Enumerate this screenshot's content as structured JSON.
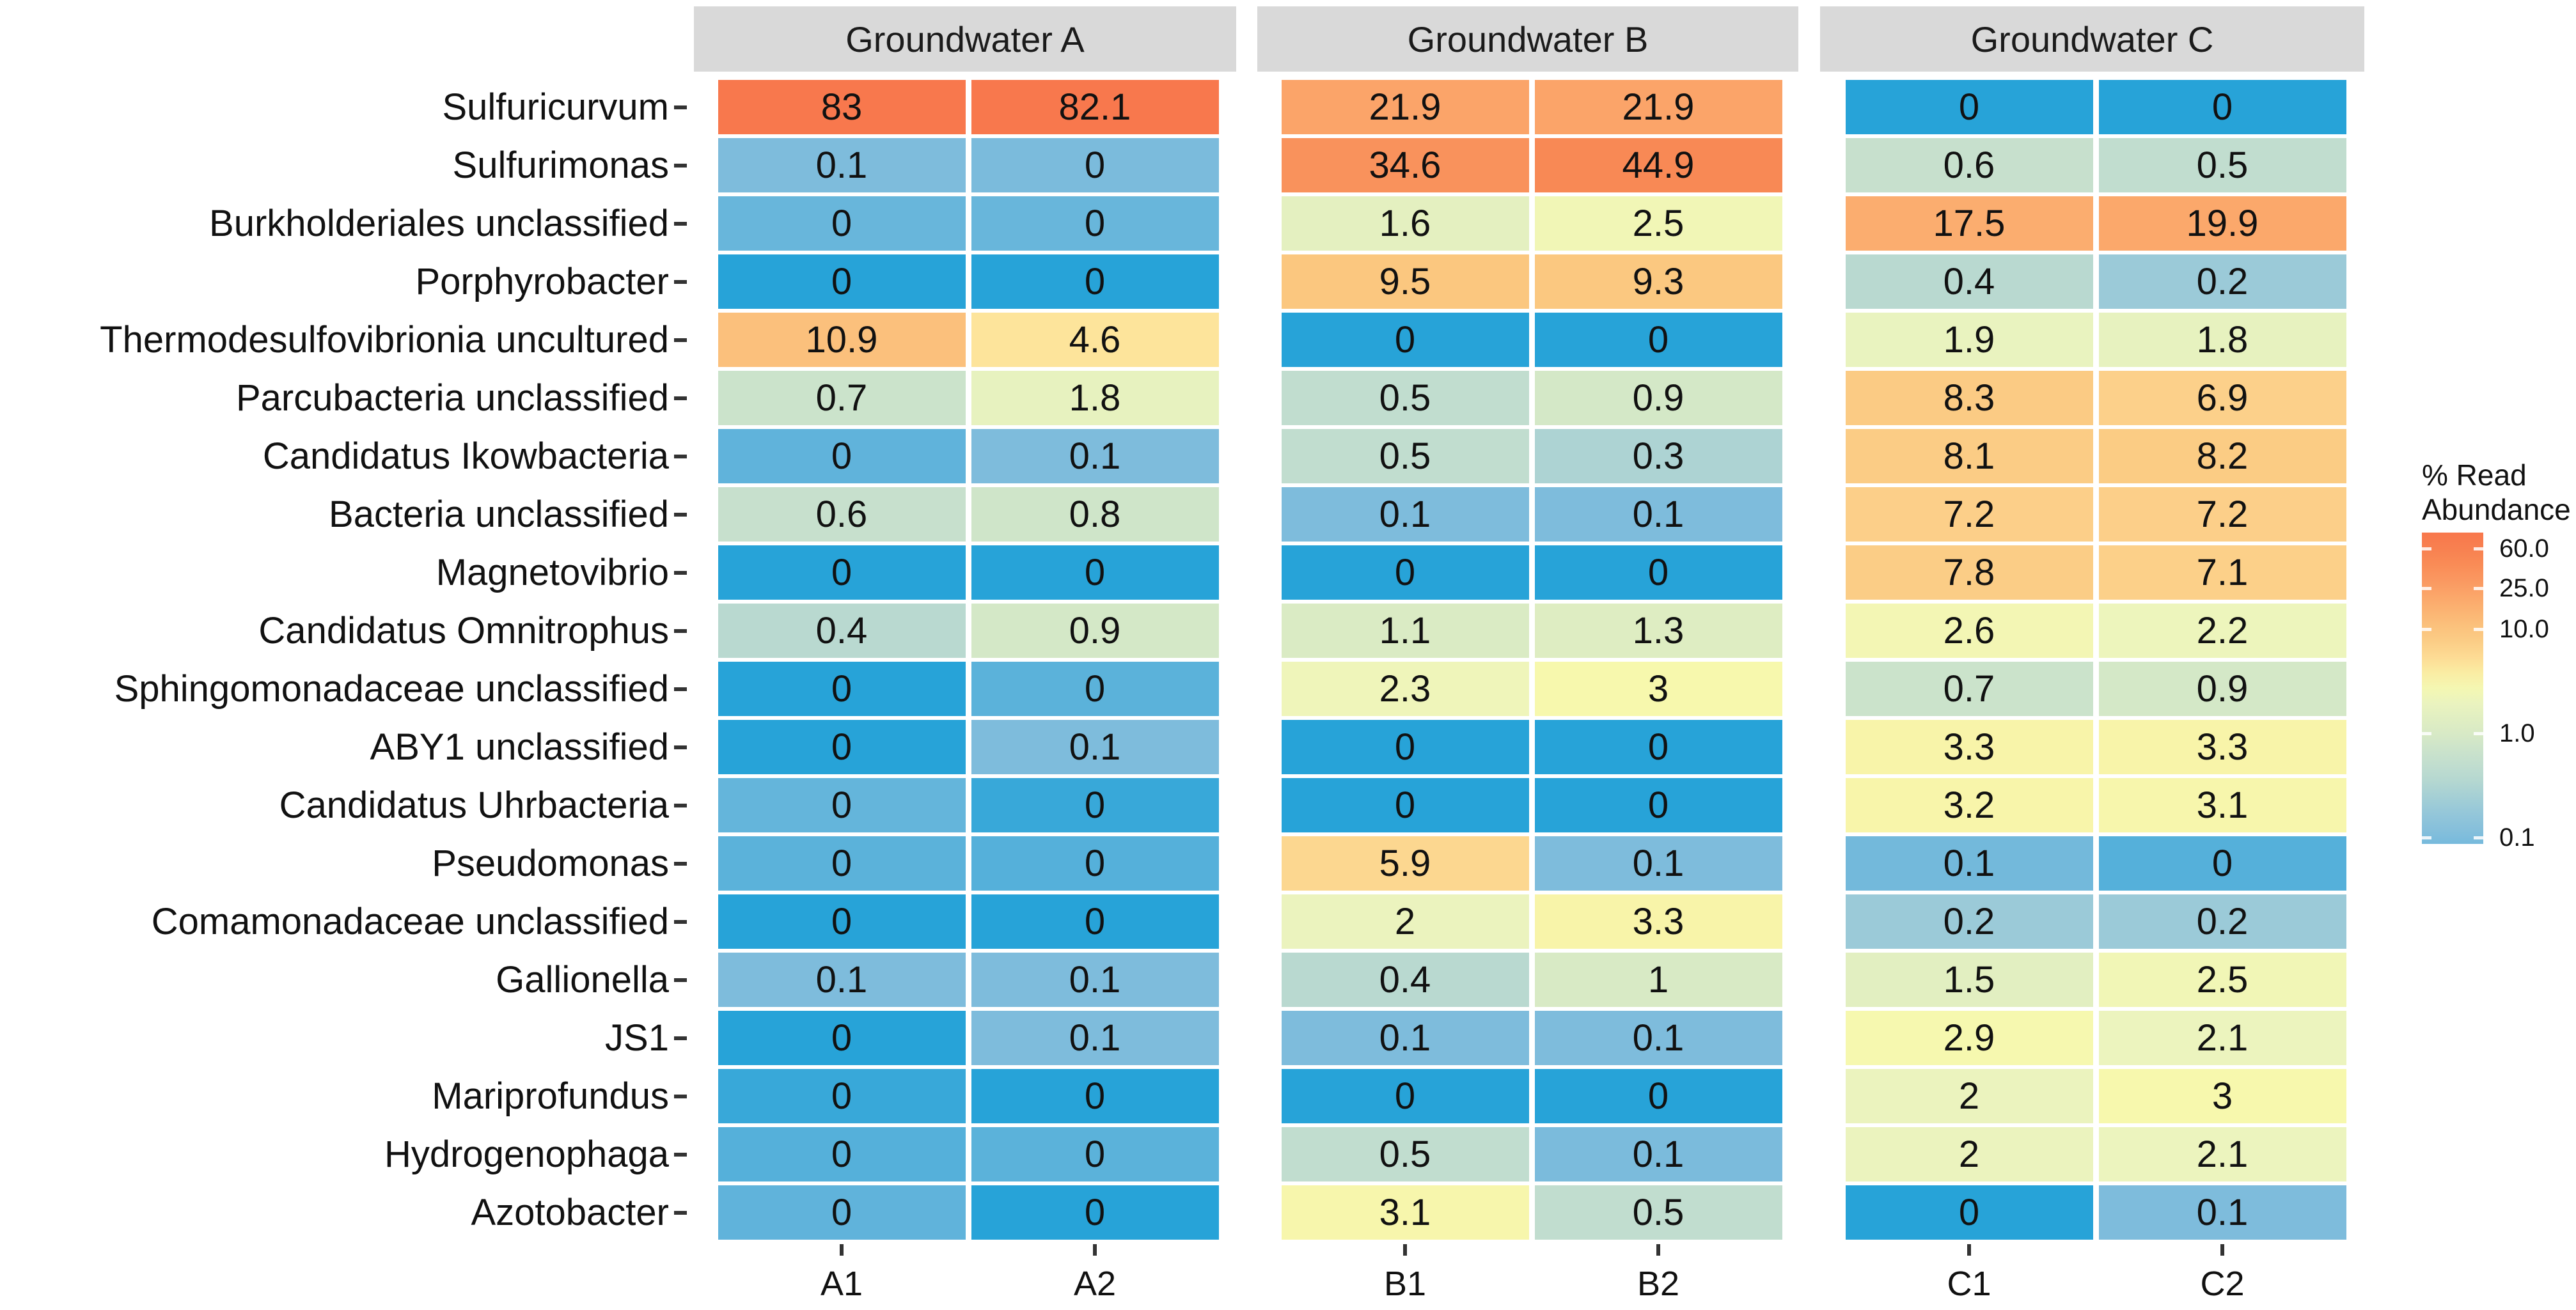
{
  "chart_data": {
    "type": "heatmap",
    "title": "",
    "facets": [
      {
        "label": "Groundwater A",
        "columns": [
          "A1",
          "A2"
        ]
      },
      {
        "label": "Groundwater B",
        "columns": [
          "B1",
          "B2"
        ]
      },
      {
        "label": "Groundwater C",
        "columns": [
          "C1",
          "C2"
        ]
      }
    ],
    "columns": [
      "A1",
      "A2",
      "B1",
      "B2",
      "C1",
      "C2"
    ],
    "rows": [
      "Sulfuricurvum",
      "Sulfurimonas",
      "Burkholderiales unclassified",
      "Porphyrobacter",
      "Thermodesulfovibrionia uncultured",
      "Parcubacteria unclassified",
      "Candidatus Ikowbacteria",
      "Bacteria unclassified",
      "Magnetovibrio",
      "Candidatus Omnitrophus",
      "Sphingomonadaceae unclassified",
      "ABY1 unclassified",
      "Candidatus Uhrbacteria",
      "Pseudomonas",
      "Comamonadaceae unclassified",
      "Gallionella",
      "JS1",
      "Mariprofundus",
      "Hydrogenophaga",
      "Azotobacter"
    ],
    "values": [
      [
        83,
        82.1,
        21.9,
        21.9,
        0,
        0
      ],
      [
        0.1,
        0,
        34.6,
        44.9,
        0.6,
        0.5
      ],
      [
        0,
        0,
        1.6,
        2.5,
        17.5,
        19.9
      ],
      [
        0,
        0,
        9.5,
        9.3,
        0.4,
        0.2
      ],
      [
        10.9,
        4.6,
        0,
        0,
        1.9,
        1.8
      ],
      [
        0.7,
        1.8,
        0.5,
        0.9,
        8.3,
        6.9
      ],
      [
        0,
        0.1,
        0.5,
        0.3,
        8.1,
        8.2
      ],
      [
        0.6,
        0.8,
        0.1,
        0.1,
        7.2,
        7.2
      ],
      [
        0,
        0,
        0,
        0,
        7.8,
        7.1
      ],
      [
        0.4,
        0.9,
        1.1,
        1.3,
        2.6,
        2.2
      ],
      [
        0,
        0,
        2.3,
        3,
        0.7,
        0.9
      ],
      [
        0,
        0.1,
        0,
        0,
        3.3,
        3.3
      ],
      [
        0,
        0,
        0,
        0,
        3.2,
        3.1
      ],
      [
        0,
        0,
        5.9,
        0.1,
        0.1,
        0
      ],
      [
        0,
        0,
        2,
        3.3,
        0.2,
        0.2
      ],
      [
        0.1,
        0.1,
        0.4,
        1,
        1.5,
        2.5
      ],
      [
        0,
        0.1,
        0.1,
        0.1,
        2.9,
        2.1
      ],
      [
        0,
        0,
        0,
        0,
        2,
        3
      ],
      [
        0,
        0,
        0.5,
        0.1,
        2,
        2.1
      ],
      [
        0,
        0,
        3.1,
        0.5,
        0,
        0.1
      ]
    ],
    "cell_labels": [
      [
        "83",
        "82.1",
        "21.9",
        "21.9",
        "0",
        "0"
      ],
      [
        "0.1",
        "0",
        "34.6",
        "44.9",
        "0.6",
        "0.5"
      ],
      [
        "0",
        "0",
        "1.6",
        "2.5",
        "17.5",
        "19.9"
      ],
      [
        "0",
        "0",
        "9.5",
        "9.3",
        "0.4",
        "0.2"
      ],
      [
        "10.9",
        "4.6",
        "0",
        "0",
        "1.9",
        "1.8"
      ],
      [
        "0.7",
        "1.8",
        "0.5",
        "0.9",
        "8.3",
        "6.9"
      ],
      [
        "0",
        "0.1",
        "0.5",
        "0.3",
        "8.1",
        "8.2"
      ],
      [
        "0.6",
        "0.8",
        "0.1",
        "0.1",
        "7.2",
        "7.2"
      ],
      [
        "0",
        "0",
        "0",
        "0",
        "7.8",
        "7.1"
      ],
      [
        "0.4",
        "0.9",
        "1.1",
        "1.3",
        "2.6",
        "2.2"
      ],
      [
        "0",
        "0",
        "2.3",
        "3",
        "0.7",
        "0.9"
      ],
      [
        "0",
        "0.1",
        "0",
        "0",
        "3.3",
        "3.3"
      ],
      [
        "0",
        "0",
        "0",
        "0",
        "3.2",
        "3.1"
      ],
      [
        "0",
        "0",
        "5.9",
        "0.1",
        "0.1",
        "0"
      ],
      [
        "0",
        "0",
        "2",
        "3.3",
        "0.2",
        "0.2"
      ],
      [
        "0.1",
        "0.1",
        "0.4",
        "1",
        "1.5",
        "2.5"
      ],
      [
        "0",
        "0.1",
        "0.1",
        "0.1",
        "2.9",
        "2.1"
      ],
      [
        "0",
        "0",
        "0",
        "0",
        "2",
        "3"
      ],
      [
        "0",
        "0",
        "0.5",
        "0.1",
        "2",
        "2.1"
      ],
      [
        "0",
        "0",
        "3.1",
        "0.5",
        "0",
        "0.1"
      ]
    ],
    "color_values": [
      [
        83,
        82.1,
        21.9,
        21.9,
        0.018,
        0.018
      ],
      [
        0.1,
        0.095,
        34.6,
        44.9,
        0.6,
        0.5
      ],
      [
        0.065,
        0.065,
        1.6,
        2.5,
        17.5,
        19.9
      ],
      [
        0.018,
        0.018,
        9.5,
        9.3,
        0.4,
        0.2
      ],
      [
        10.9,
        4.6,
        0.018,
        0.018,
        1.9,
        1.8
      ],
      [
        0.7,
        1.8,
        0.5,
        0.9,
        8.3,
        6.9
      ],
      [
        0.055,
        0.1,
        0.5,
        0.3,
        8.1,
        8.2
      ],
      [
        0.6,
        0.8,
        0.1,
        0.1,
        7.2,
        7.2
      ],
      [
        0.018,
        0.018,
        0.018,
        0.018,
        7.8,
        7.1
      ],
      [
        0.4,
        0.9,
        1.1,
        1.3,
        2.6,
        2.2
      ],
      [
        0.018,
        0.05,
        2.3,
        3,
        0.7,
        0.9
      ],
      [
        0.018,
        0.1,
        0.018,
        0.018,
        3.3,
        3.3
      ],
      [
        0.06,
        0.025,
        0.018,
        0.018,
        3.2,
        3.1
      ],
      [
        0.05,
        0.045,
        5.9,
        0.1,
        0.08,
        0.045
      ],
      [
        0.018,
        0.018,
        2,
        3.3,
        0.2,
        0.2
      ],
      [
        0.1,
        0.1,
        0.4,
        1,
        1.5,
        2.5
      ],
      [
        0.018,
        0.1,
        0.1,
        0.1,
        2.9,
        2.1
      ],
      [
        0.025,
        0.018,
        0.018,
        0.018,
        2,
        3
      ],
      [
        0.045,
        0.05,
        0.5,
        0.095,
        2,
        2.1
      ],
      [
        0.055,
        0.018,
        3.1,
        0.5,
        0.018,
        0.1
      ]
    ],
    "legend": {
      "title_line1": "% Read",
      "title_line2": "Abundance",
      "tick_labels": [
        "60.0",
        "25.0",
        "10.0",
        "1.0",
        "0.1"
      ],
      "tick_values": [
        60,
        25,
        10,
        1,
        0.1
      ],
      "bar_top_value": 85,
      "bar_bottom_value": 0.09
    },
    "scale": {
      "type": "log",
      "grid": false,
      "legend_position": "right"
    },
    "colormap_stops": [
      [
        0.018,
        "#27A3D8"
      ],
      [
        0.1,
        "#7EBCDC"
      ],
      [
        0.2,
        "#9BCAD8"
      ],
      [
        0.35,
        "#B4D7D1"
      ],
      [
        0.55,
        "#C4DFCE"
      ],
      [
        0.8,
        "#CFE5C9"
      ],
      [
        1,
        "#D8EAC5"
      ],
      [
        1.5,
        "#E2EFC1"
      ],
      [
        2.1,
        "#ECF4BE"
      ],
      [
        3,
        "#F7F8AD"
      ],
      [
        4.6,
        "#FDE49B"
      ],
      [
        6.5,
        "#FCD28C"
      ],
      [
        9,
        "#FBC981"
      ],
      [
        12,
        "#FBBC79"
      ],
      [
        20,
        "#FBA86B"
      ],
      [
        30,
        "#FA9760"
      ],
      [
        50,
        "#F88552"
      ],
      [
        88,
        "#F8764C"
      ]
    ],
    "strip_color": "#D9D9D9",
    "zero_color": "#27A3D8"
  }
}
